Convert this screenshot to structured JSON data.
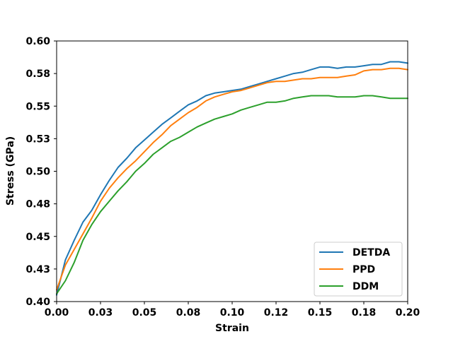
{
  "chart_data": {
    "type": "line",
    "title": "",
    "xlabel": "Strain",
    "ylabel": "Stress (GPa)",
    "xlim": [
      0.0,
      0.2
    ],
    "ylim": [
      0.4,
      0.6
    ],
    "xticks": [
      0.0,
      0.025,
      0.05,
      0.075,
      0.1,
      0.125,
      0.15,
      0.175,
      0.2
    ],
    "xtick_labels": [
      "0.00",
      "0.03",
      "0.05",
      "0.08",
      "0.10",
      "0.12",
      "0.15",
      "0.18",
      "0.20"
    ],
    "yticks": [
      0.4,
      0.425,
      0.45,
      0.475,
      0.5,
      0.525,
      0.55,
      0.575,
      0.6
    ],
    "ytick_labels": [
      "0.40",
      "0.43",
      "0.45",
      "0.48",
      "0.50",
      "0.53",
      "0.55",
      "0.58",
      "0.60"
    ],
    "grid": false,
    "legend_position": "lower-right",
    "x": [
      0.0,
      0.005,
      0.01,
      0.015,
      0.02,
      0.025,
      0.03,
      0.035,
      0.04,
      0.045,
      0.05,
      0.055,
      0.06,
      0.065,
      0.07,
      0.075,
      0.08,
      0.085,
      0.09,
      0.095,
      0.1,
      0.105,
      0.11,
      0.115,
      0.12,
      0.125,
      0.13,
      0.135,
      0.14,
      0.145,
      0.15,
      0.155,
      0.16,
      0.165,
      0.17,
      0.175,
      0.18,
      0.185,
      0.19,
      0.195,
      0.2
    ],
    "series": [
      {
        "name": "DETDA",
        "color": "#1f77b4",
        "values": [
          0.405,
          0.432,
          0.447,
          0.461,
          0.47,
          0.482,
          0.493,
          0.503,
          0.51,
          0.518,
          0.524,
          0.53,
          0.536,
          0.541,
          0.546,
          0.551,
          0.554,
          0.558,
          0.56,
          0.561,
          0.562,
          0.563,
          0.565,
          0.567,
          0.569,
          0.571,
          0.573,
          0.575,
          0.576,
          0.578,
          0.58,
          0.58,
          0.579,
          0.58,
          0.58,
          0.581,
          0.582,
          0.582,
          0.584,
          0.584,
          0.583
        ]
      },
      {
        "name": "PPD",
        "color": "#ff7f0e",
        "values": [
          0.409,
          0.428,
          0.44,
          0.452,
          0.464,
          0.477,
          0.487,
          0.495,
          0.502,
          0.508,
          0.515,
          0.522,
          0.528,
          0.535,
          0.54,
          0.545,
          0.549,
          0.554,
          0.557,
          0.559,
          0.561,
          0.562,
          0.564,
          0.566,
          0.568,
          0.569,
          0.569,
          0.57,
          0.571,
          0.571,
          0.572,
          0.572,
          0.572,
          0.573,
          0.574,
          0.577,
          0.578,
          0.578,
          0.579,
          0.579,
          0.578
        ]
      },
      {
        "name": "DDM",
        "color": "#2ca02c",
        "values": [
          0.406,
          0.416,
          0.43,
          0.447,
          0.459,
          0.469,
          0.477,
          0.485,
          0.492,
          0.5,
          0.506,
          0.513,
          0.518,
          0.523,
          0.526,
          0.53,
          0.534,
          0.537,
          0.54,
          0.542,
          0.544,
          0.547,
          0.549,
          0.551,
          0.553,
          0.553,
          0.554,
          0.556,
          0.557,
          0.558,
          0.558,
          0.558,
          0.557,
          0.557,
          0.557,
          0.558,
          0.558,
          0.557,
          0.556,
          0.556,
          0.556
        ]
      }
    ]
  }
}
